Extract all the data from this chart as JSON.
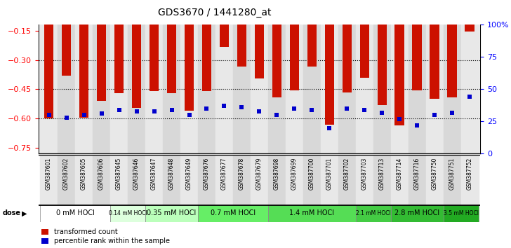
{
  "title": "GDS3670 / 1441280_at",
  "samples": [
    "GSM387601",
    "GSM387602",
    "GSM387605",
    "GSM387606",
    "GSM387645",
    "GSM387646",
    "GSM387647",
    "GSM387648",
    "GSM387649",
    "GSM387676",
    "GSM387677",
    "GSM387678",
    "GSM387679",
    "GSM387698",
    "GSM387699",
    "GSM387700",
    "GSM387701",
    "GSM387702",
    "GSM387703",
    "GSM387713",
    "GSM387714",
    "GSM387716",
    "GSM387750",
    "GSM387751",
    "GSM387752"
  ],
  "transformed_count": [
    -0.6,
    -0.38,
    -0.595,
    -0.51,
    -0.47,
    -0.545,
    -0.46,
    -0.47,
    -0.558,
    -0.46,
    -0.235,
    -0.335,
    -0.395,
    -0.49,
    -0.455,
    -0.335,
    -0.63,
    -0.465,
    -0.39,
    -0.53,
    -0.635,
    -0.455,
    -0.5,
    -0.49,
    -0.155
  ],
  "percentile_rank": [
    30,
    28,
    30,
    31,
    34,
    33,
    33,
    34,
    30,
    35,
    37,
    36,
    33,
    30,
    35,
    34,
    20,
    35,
    34,
    32,
    27,
    22,
    30,
    32,
    44
  ],
  "dose_groups": [
    {
      "label": "0 mM HOCl",
      "start": 0,
      "end": 4,
      "color": "#ffffff"
    },
    {
      "label": "0.14 mM HOCl",
      "start": 4,
      "end": 6,
      "color": "#ddffdd"
    },
    {
      "label": "0.35 mM HOCl",
      "start": 6,
      "end": 9,
      "color": "#bbffbb"
    },
    {
      "label": "0.7 mM HOCl",
      "start": 9,
      "end": 13,
      "color": "#66ee66"
    },
    {
      "label": "1.4 mM HOCl",
      "start": 13,
      "end": 18,
      "color": "#55dd55"
    },
    {
      "label": "2.1 mM HOCl",
      "start": 18,
      "end": 20,
      "color": "#44cc44"
    },
    {
      "label": "2.8 mM HOCl",
      "start": 20,
      "end": 23,
      "color": "#33bb33"
    },
    {
      "label": "3.5 mM HOCl",
      "start": 23,
      "end": 25,
      "color": "#22aa22"
    }
  ],
  "ylim_left": [
    -0.78,
    -0.12
  ],
  "ylim_right": [
    0,
    100
  ],
  "yticks_left": [
    -0.75,
    -0.6,
    -0.45,
    -0.3,
    -0.15
  ],
  "yticks_right": [
    0,
    25,
    50,
    75,
    100
  ],
  "grid_lines": [
    -0.3,
    -0.45,
    -0.6
  ],
  "bar_color": "#cc1100",
  "percentile_color": "#0000cc",
  "bar_width": 0.55,
  "legend_items": [
    "transformed count",
    "percentile rank within the sample"
  ],
  "bg_colors": [
    "#e8e8e8",
    "#d8d8d8"
  ]
}
